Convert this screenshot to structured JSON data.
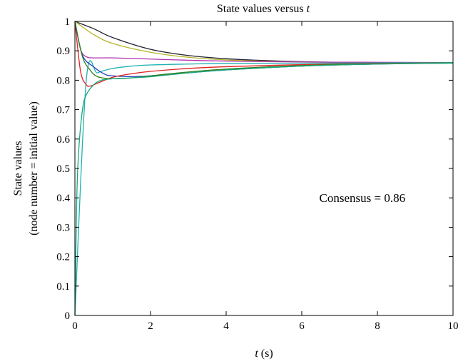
{
  "chart_data": {
    "type": "line",
    "title": "State values versus t",
    "title_parts": {
      "text": "State values versus ",
      "italic_var": "t"
    },
    "xlabel_parts": {
      "italic_var": "t",
      "unit": " (s)"
    },
    "ylabel_lines": [
      "State values",
      "(node number = initial value)"
    ],
    "xlim": [
      0,
      10
    ],
    "ylim": [
      0,
      1
    ],
    "xticks": [
      0,
      2,
      4,
      6,
      8,
      10
    ],
    "yticks": [
      0,
      0.1,
      0.2,
      0.3,
      0.4,
      0.5,
      0.6,
      0.7,
      0.8,
      0.9,
      1
    ],
    "grid": false,
    "annotation": {
      "text": "Consensus = 0.86",
      "x": 7.6,
      "y": 0.4
    },
    "series": [
      {
        "color": "#222233",
        "x": [
          0,
          0.5,
          1,
          2,
          3,
          4,
          5,
          6,
          7,
          8,
          9,
          10
        ],
        "y": [
          1.0,
          0.975,
          0.945,
          0.905,
          0.884,
          0.873,
          0.867,
          0.863,
          0.861,
          0.86,
          0.86,
          0.86
        ]
      },
      {
        "color": "#b5b528",
        "x": [
          0,
          0.5,
          1,
          2,
          3,
          4,
          5,
          6,
          7,
          8,
          9,
          10
        ],
        "y": [
          1.0,
          0.955,
          0.925,
          0.895,
          0.878,
          0.869,
          0.865,
          0.862,
          0.861,
          0.86,
          0.86,
          0.86
        ]
      },
      {
        "color": "#b030b0",
        "x": [
          0,
          0.15,
          0.3,
          0.5,
          1,
          2,
          3,
          4,
          6,
          8,
          10
        ],
        "y": [
          1.0,
          0.905,
          0.88,
          0.876,
          0.876,
          0.872,
          0.868,
          0.865,
          0.862,
          0.861,
          0.86
        ]
      },
      {
        "color": "#20b0b0",
        "x": [
          0,
          0.3,
          0.6,
          1,
          1.5,
          2,
          3,
          4,
          6,
          8,
          10
        ],
        "y": [
          0.0,
          0.8,
          0.825,
          0.84,
          0.848,
          0.852,
          0.855,
          0.857,
          0.858,
          0.859,
          0.86
        ]
      },
      {
        "color": "#2040c0",
        "x": [
          0,
          0.2,
          0.5,
          0.8,
          1,
          1.5,
          2,
          3,
          4,
          6,
          8,
          10
        ],
        "y": [
          1.0,
          0.885,
          0.845,
          0.82,
          0.815,
          0.812,
          0.815,
          0.825,
          0.835,
          0.848,
          0.855,
          0.858
        ]
      },
      {
        "color": "#e02020",
        "x": [
          0,
          0.15,
          0.3,
          0.4,
          0.6,
          1,
          1.5,
          2,
          3,
          4,
          6,
          8,
          10
        ],
        "y": [
          1.0,
          0.83,
          0.785,
          0.78,
          0.79,
          0.81,
          0.822,
          0.83,
          0.84,
          0.846,
          0.853,
          0.857,
          0.859
        ]
      },
      {
        "color": "#308020",
        "x": [
          0,
          0.2,
          0.4,
          0.6,
          1,
          1.5,
          2,
          3,
          4,
          6,
          8,
          10
        ],
        "y": [
          1.0,
          0.88,
          0.835,
          0.812,
          0.805,
          0.808,
          0.815,
          0.828,
          0.838,
          0.85,
          0.856,
          0.859
        ]
      },
      {
        "color": "#18a878",
        "x": [
          0,
          0.05,
          0.1,
          0.2,
          0.3,
          0.5,
          0.7,
          1,
          1.5,
          2,
          3,
          4,
          6,
          8,
          10
        ],
        "y": [
          0.0,
          0.4,
          0.56,
          0.7,
          0.75,
          0.785,
          0.8,
          0.805,
          0.808,
          0.812,
          0.825,
          0.835,
          0.848,
          0.855,
          0.858
        ]
      }
    ]
  }
}
